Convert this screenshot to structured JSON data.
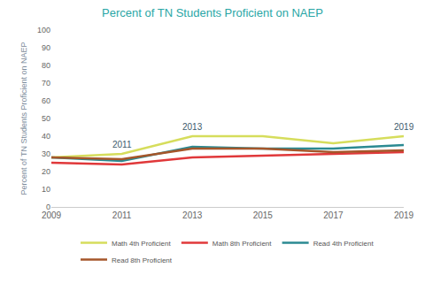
{
  "chart_data": {
    "type": "line",
    "title": "Percent of TN Students Proficient on NAEP",
    "y_label": "Percent of TN Students Proficient on NAEP",
    "x": [
      2009,
      2011,
      2013,
      2015,
      2017,
      2019
    ],
    "xlim": [
      2009,
      2019
    ],
    "xticks": [
      2009,
      2011,
      2013,
      2015,
      2017,
      2019
    ],
    "ylim": [
      0,
      100
    ],
    "yticks": [
      0,
      10,
      20,
      30,
      40,
      50,
      60,
      70,
      80,
      90,
      100
    ],
    "grid": false,
    "legend": "bottom",
    "series": [
      {
        "name": "Math 4th Proficient",
        "color": "#d6dd5c",
        "values": [
          28,
          30,
          40,
          40,
          36,
          40
        ]
      },
      {
        "name": "Math 8th Proficient",
        "color": "#e0383a",
        "values": [
          25,
          24,
          28,
          29,
          30,
          31
        ]
      },
      {
        "name": "Read 4th Proficient",
        "color": "#2b8a92",
        "values": [
          28,
          26,
          34,
          33,
          33,
          35
        ]
      },
      {
        "name": "Read 8th Proficient",
        "color": "#a5562a",
        "values": [
          28,
          27,
          33,
          33,
          31,
          32
        ]
      }
    ],
    "annotations": [
      {
        "text": "2011",
        "x": 2011,
        "y": 30
      },
      {
        "text": "2013",
        "x": 2013,
        "y": 40
      },
      {
        "text": "2019",
        "x": 2019,
        "y": 40
      }
    ]
  }
}
